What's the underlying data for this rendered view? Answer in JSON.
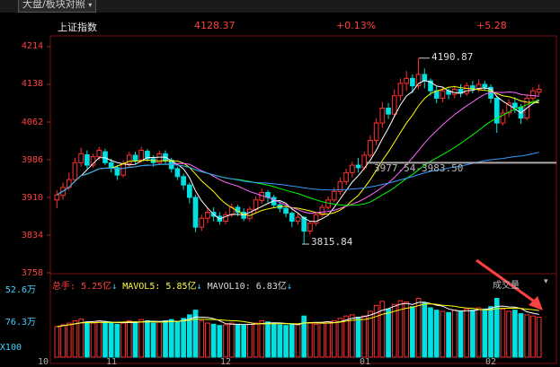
{
  "tab": {
    "label": "大盘/板块对照"
  },
  "info": {
    "name": "上证指数",
    "price": "4128.37",
    "pct": "+0.13%",
    "change": "+5.28"
  },
  "y_axis": {
    "labels": [
      "4214",
      "4138",
      "4062",
      "3986",
      "3910",
      "3834",
      "3758"
    ]
  },
  "annotations": {
    "high": "4190.87",
    "low": "3815.84",
    "range": "3977.54-3983.50"
  },
  "volume": {
    "total_label": "总手:",
    "total_value": "5.25亿",
    "mavol5_label": "MAVOL5:",
    "mavol5_value": "5.85亿",
    "mavol10_label": "MAVOL10:",
    "mavol10_value": "6.83亿",
    "indicator": "成交量",
    "y_labels": [
      "52.6万",
      "76.3万",
      "X100"
    ]
  },
  "x_axis": {
    "labels": [
      "10",
      "11",
      "12",
      "01",
      "02"
    ]
  },
  "colors": {
    "up": "#ff3030",
    "down": "#00e0e0",
    "ma5": "#ffffff",
    "ma10": "#ffff00",
    "ma20": "#ff66ff",
    "ma30": "#00ff00",
    "ma60": "#3399ff",
    "annotation_line": "#aaaaaa"
  },
  "chart_data": {
    "type": "candlestick",
    "ylim": [
      3758,
      4214
    ],
    "candles": [
      [
        3905,
        3915,
        3888,
        3924
      ],
      [
        3914,
        3930,
        3905,
        3940
      ],
      [
        3930,
        3946,
        3925,
        3960
      ],
      [
        3946,
        3980,
        3940,
        3990
      ],
      [
        3980,
        3998,
        3972,
        4010
      ],
      [
        3996,
        3975,
        3968,
        4005
      ],
      [
        3975,
        3992,
        3970,
        3998
      ],
      [
        3992,
        4005,
        3985,
        4012
      ],
      [
        4002,
        3980,
        3975,
        4008
      ],
      [
        3980,
        3970,
        3960,
        3988
      ],
      [
        3970,
        3955,
        3945,
        3975
      ],
      [
        3955,
        3978,
        3950,
        3985
      ],
      [
        3978,
        3995,
        3970,
        4002
      ],
      [
        3995,
        3985,
        3978,
        4002
      ],
      [
        3985,
        4005,
        3980,
        4012
      ],
      [
        4003,
        3988,
        3982,
        4008
      ],
      [
        3988,
        3980,
        3972,
        3995
      ],
      [
        3980,
        3998,
        3975,
        4005
      ],
      [
        3998,
        3985,
        3978,
        4005
      ],
      [
        3985,
        3968,
        3960,
        3990
      ],
      [
        3968,
        3952,
        3945,
        3972
      ],
      [
        3952,
        3935,
        3925,
        3958
      ],
      [
        3935,
        3910,
        3898,
        3940
      ],
      [
        3910,
        3850,
        3840,
        3915
      ],
      [
        3850,
        3868,
        3842,
        3875
      ],
      [
        3868,
        3880,
        3858,
        3888
      ],
      [
        3880,
        3872,
        3862,
        3890
      ],
      [
        3872,
        3862,
        3855,
        3880
      ],
      [
        3862,
        3875,
        3856,
        3882
      ],
      [
        3875,
        3890,
        3870,
        3898
      ],
      [
        3890,
        3880,
        3872,
        3895
      ],
      [
        3880,
        3868,
        3862,
        3888
      ],
      [
        3868,
        3886,
        3862,
        3892
      ],
      [
        3886,
        3905,
        3880,
        3912
      ],
      [
        3904,
        3920,
        3898,
        3928
      ],
      [
        3920,
        3910,
        3900,
        3925
      ],
      [
        3910,
        3895,
        3888,
        3915
      ],
      [
        3895,
        3888,
        3880,
        3902
      ],
      [
        3888,
        3878,
        3870,
        3893
      ],
      [
        3878,
        3862,
        3850,
        3882
      ],
      [
        3862,
        3870,
        3855,
        3878
      ],
      [
        3870,
        3842,
        3816,
        3872
      ],
      [
        3842,
        3858,
        3835,
        3862
      ],
      [
        3858,
        3875,
        3852,
        3880
      ],
      [
        3875,
        3890,
        3870,
        3896
      ],
      [
        3890,
        3905,
        3885,
        3912
      ],
      [
        3905,
        3922,
        3900,
        3930
      ],
      [
        3922,
        3942,
        3915,
        3950
      ],
      [
        3942,
        3960,
        3935,
        3968
      ],
      [
        3960,
        3975,
        3950,
        3982
      ],
      [
        3975,
        3970,
        3960,
        3990
      ],
      [
        3970,
        3995,
        3965,
        4002
      ],
      [
        3995,
        4025,
        3990,
        4035
      ],
      [
        4025,
        4060,
        4015,
        4070
      ],
      [
        4060,
        4090,
        4050,
        4102
      ],
      [
        4090,
        4078,
        4068,
        4100
      ],
      [
        4078,
        4115,
        4072,
        4128
      ],
      [
        4115,
        4140,
        4105,
        4150
      ],
      [
        4140,
        4150,
        4125,
        4165
      ],
      [
        4150,
        4135,
        4120,
        4158
      ],
      [
        4135,
        4158,
        4128,
        4191
      ],
      [
        4158,
        4145,
        4130,
        4170
      ],
      [
        4145,
        4125,
        4115,
        4150
      ],
      [
        4125,
        4110,
        4100,
        4135
      ],
      [
        4110,
        4125,
        4102,
        4132
      ],
      [
        4125,
        4118,
        4108,
        4130
      ],
      [
        4118,
        4128,
        4110,
        4136
      ],
      [
        4128,
        4120,
        4112,
        4138
      ],
      [
        4120,
        4135,
        4115,
        4142
      ],
      [
        4135,
        4128,
        4120,
        4145
      ],
      [
        4128,
        4138,
        4122,
        4148
      ],
      [
        4138,
        4132,
        4125,
        4145
      ],
      [
        4132,
        4110,
        4100,
        4138
      ],
      [
        4110,
        4060,
        4040,
        4115
      ],
      [
        4060,
        4080,
        4055,
        4088
      ],
      [
        4080,
        4100,
        4072,
        4108
      ],
      [
        4100,
        4092,
        4080,
        4112
      ],
      [
        4092,
        4070,
        4058,
        4098
      ],
      [
        4070,
        4110,
        4065,
        4118
      ],
      [
        4110,
        4125,
        4102,
        4132
      ],
      [
        4122,
        4128,
        4115,
        4138
      ]
    ],
    "volumes": [
      52,
      55,
      58,
      62,
      65,
      60,
      58,
      62,
      60,
      58,
      56,
      58,
      62,
      60,
      64,
      62,
      58,
      60,
      62,
      64,
      60,
      66,
      72,
      80,
      62,
      58,
      56,
      54,
      55,
      58,
      56,
      54,
      56,
      58,
      62,
      60,
      56,
      55,
      54,
      57,
      55,
      70,
      58,
      56,
      58,
      60,
      62,
      66,
      70,
      72,
      68,
      70,
      78,
      88,
      95,
      82,
      90,
      96,
      94,
      86,
      100,
      92,
      84,
      80,
      78,
      76,
      80,
      78,
      82,
      80,
      84,
      82,
      86,
      100,
      82,
      78,
      80,
      74,
      72,
      70,
      68
    ],
    "volume_ylim": [
      0,
      110
    ]
  }
}
